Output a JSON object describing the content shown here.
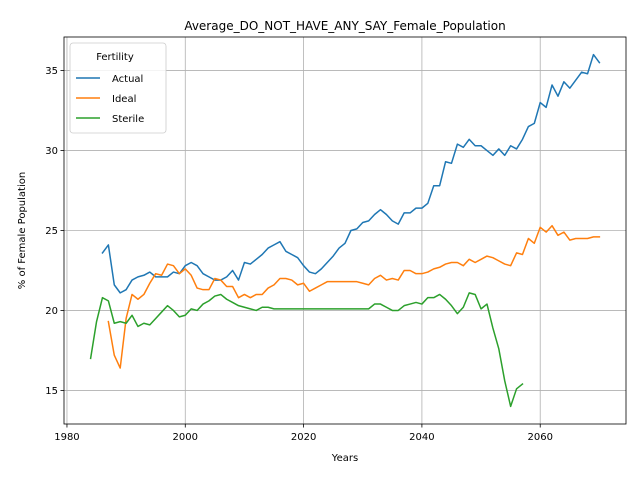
{
  "chart_data": {
    "type": "line",
    "title": "Average_DO_NOT_HAVE_ANY_SAY_Female_Population",
    "xlabel": "Years",
    "ylabel": "% of Female Population",
    "xlim": [
      1979.5,
      2074.5
    ],
    "ylim": [
      12.9,
      37.1
    ],
    "xticks": [
      1980,
      2000,
      2020,
      2040,
      2060
    ],
    "yticks": [
      15,
      20,
      25,
      30,
      35
    ],
    "grid": true,
    "legend": {
      "title": "Fertility",
      "placement": "top-left"
    },
    "series": [
      {
        "name": "Actual",
        "color": "#1f77b4",
        "x": [
          1986,
          1987,
          1988,
          1989,
          1990,
          1991,
          1992,
          1993,
          1994,
          1995,
          1996,
          1997,
          1998,
          1999,
          2000,
          2001,
          2002,
          2003,
          2004,
          2005,
          2006,
          2007,
          2008,
          2009,
          2010,
          2011,
          2012,
          2013,
          2014,
          2015,
          2016,
          2017,
          2018,
          2019,
          2020,
          2021,
          2022,
          2023,
          2024,
          2025,
          2026,
          2027,
          2028,
          2029,
          2030,
          2031,
          2032,
          2033,
          2034,
          2035,
          2036,
          2037,
          2038,
          2039,
          2040,
          2041,
          2042,
          2043,
          2044,
          2045,
          2046,
          2047,
          2048,
          2049,
          2050,
          2051,
          2052,
          2053,
          2054,
          2055,
          2056,
          2057,
          2058,
          2059,
          2060,
          2061,
          2062,
          2063,
          2064,
          2065,
          2066,
          2067,
          2068,
          2069,
          2070
        ],
        "y": [
          23.6,
          24.1,
          21.6,
          21.1,
          21.3,
          21.9,
          22.1,
          22.2,
          22.4,
          22.1,
          22.1,
          22.1,
          22.4,
          22.3,
          22.8,
          23.0,
          22.8,
          22.3,
          22.1,
          21.9,
          21.9,
          22.1,
          22.5,
          21.9,
          23.0,
          22.9,
          23.2,
          23.5,
          23.9,
          24.1,
          24.3,
          23.7,
          23.5,
          23.3,
          22.8,
          22.4,
          22.3,
          22.6,
          23.0,
          23.4,
          23.9,
          24.2,
          25.0,
          25.1,
          25.5,
          25.6,
          26.0,
          26.3,
          26.0,
          25.6,
          25.4,
          26.1,
          26.1,
          26.4,
          26.4,
          26.7,
          27.8,
          27.8,
          29.3,
          29.2,
          30.4,
          30.2,
          30.7,
          30.3,
          30.3,
          30.0,
          29.7,
          30.1,
          29.7,
          30.3,
          30.1,
          30.7,
          31.5,
          31.7,
          33.0,
          32.7,
          34.1,
          33.4,
          34.3,
          33.9,
          34.4,
          34.9,
          34.8,
          36.0,
          35.5
        ]
      },
      {
        "name": "Ideal",
        "color": "#ff7f0e",
        "x": [
          1987,
          1988,
          1989,
          1990,
          1991,
          1992,
          1993,
          1994,
          1995,
          1996,
          1997,
          1998,
          1999,
          2000,
          2001,
          2002,
          2003,
          2004,
          2005,
          2006,
          2007,
          2008,
          2009,
          2010,
          2011,
          2012,
          2013,
          2014,
          2015,
          2016,
          2017,
          2018,
          2019,
          2020,
          2021,
          2022,
          2023,
          2024,
          2025,
          2026,
          2027,
          2028,
          2029,
          2030,
          2031,
          2032,
          2033,
          2034,
          2035,
          2036,
          2037,
          2038,
          2039,
          2040,
          2041,
          2042,
          2043,
          2044,
          2045,
          2046,
          2047,
          2048,
          2049,
          2050,
          2051,
          2052,
          2053,
          2054,
          2055,
          2056,
          2057,
          2058,
          2059,
          2060,
          2061,
          2062,
          2063,
          2064,
          2065,
          2066,
          2067,
          2068,
          2069,
          2070
        ],
        "y": [
          19.3,
          17.2,
          16.4,
          19.5,
          21.0,
          20.7,
          21.0,
          21.7,
          22.3,
          22.2,
          22.9,
          22.8,
          22.3,
          22.6,
          22.2,
          21.4,
          21.3,
          21.3,
          22.0,
          21.9,
          21.5,
          21.5,
          20.8,
          21.0,
          20.8,
          21.0,
          21.0,
          21.4,
          21.6,
          22.0,
          22.0,
          21.9,
          21.6,
          21.7,
          21.2,
          21.4,
          21.6,
          21.8,
          21.8,
          21.8,
          21.8,
          21.8,
          21.8,
          21.7,
          21.6,
          22.0,
          22.2,
          21.9,
          22.0,
          21.9,
          22.5,
          22.5,
          22.3,
          22.3,
          22.4,
          22.6,
          22.7,
          22.9,
          23.0,
          23.0,
          22.8,
          23.2,
          23.0,
          23.2,
          23.4,
          23.3,
          23.1,
          22.9,
          22.8,
          23.6,
          23.5,
          24.5,
          24.2,
          25.2,
          24.9,
          25.3,
          24.7,
          24.9,
          24.4,
          24.5,
          24.5,
          24.5,
          24.6,
          24.6
        ]
      },
      {
        "name": "Sterile",
        "color": "#2ca02c",
        "x": [
          1984,
          1985,
          1986,
          1987,
          1988,
          1989,
          1990,
          1991,
          1992,
          1993,
          1994,
          1995,
          1996,
          1997,
          1998,
          1999,
          2000,
          2001,
          2002,
          2003,
          2004,
          2005,
          2006,
          2007,
          2008,
          2009,
          2010,
          2011,
          2012,
          2013,
          2014,
          2015,
          2016,
          2017,
          2018,
          2019,
          2020,
          2021,
          2022,
          2023,
          2024,
          2025,
          2026,
          2027,
          2028,
          2029,
          2030,
          2031,
          2032,
          2033,
          2034,
          2035,
          2036,
          2037,
          2038,
          2039,
          2040,
          2041,
          2042,
          2043,
          2044,
          2045,
          2046,
          2047,
          2048,
          2049,
          2050,
          2051,
          2052,
          2053,
          2054,
          2055,
          2056,
          2057
        ],
        "y": [
          17.0,
          19.3,
          20.8,
          20.6,
          19.2,
          19.3,
          19.2,
          19.7,
          19.0,
          19.2,
          19.1,
          19.5,
          19.9,
          20.3,
          20.0,
          19.6,
          19.7,
          20.1,
          20.0,
          20.4,
          20.6,
          20.9,
          21.0,
          20.7,
          20.5,
          20.3,
          20.2,
          20.1,
          20.0,
          20.2,
          20.2,
          20.1,
          20.1,
          20.1,
          20.1,
          20.1,
          20.1,
          20.1,
          20.1,
          20.1,
          20.1,
          20.1,
          20.1,
          20.1,
          20.1,
          20.1,
          20.1,
          20.1,
          20.4,
          20.4,
          20.2,
          20.0,
          20.0,
          20.3,
          20.4,
          20.5,
          20.4,
          20.8,
          20.8,
          21.0,
          20.7,
          20.3,
          19.8,
          20.2,
          21.1,
          21.0,
          20.1,
          20.4,
          18.9,
          17.6,
          15.6,
          14.0,
          15.1,
          15.4
        ]
      }
    ]
  }
}
